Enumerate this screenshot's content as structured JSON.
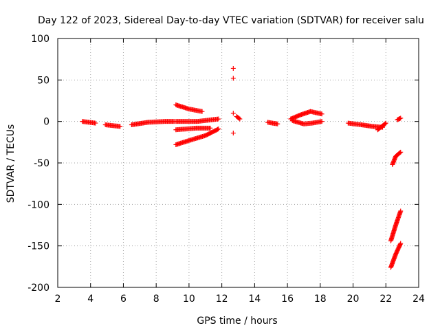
{
  "chart_data": {
    "type": "scatter",
    "title": "Day 122 of 2023, Sidereal Day-to-day VTEC variation (SDTVAR) for receiver salu",
    "xlabel": "GPS time / hours",
    "ylabel": "SDTVAR / TECUs",
    "xlim": [
      2,
      24
    ],
    "ylim": [
      -200,
      100
    ],
    "xticks": [
      2,
      4,
      6,
      8,
      10,
      12,
      14,
      16,
      18,
      20,
      22,
      24
    ],
    "yticks": [
      -200,
      -150,
      -100,
      -50,
      0,
      50,
      100
    ],
    "grid": true,
    "marker": "+",
    "color": "#ff0000",
    "segments": [
      {
        "x": [
          3.5,
          4.3
        ],
        "y": [
          0,
          -2
        ]
      },
      {
        "x": [
          4.9,
          5.8
        ],
        "y": [
          -4,
          -6
        ]
      },
      {
        "x": [
          6.5,
          7.5,
          8.5,
          9.1
        ],
        "y": [
          -4,
          -1,
          0,
          0
        ]
      },
      {
        "x": [
          9.2,
          10.0,
          10.8
        ],
        "y": [
          20,
          15,
          12
        ]
      },
      {
        "x": [
          9.2,
          10.5,
          11.3
        ],
        "y": [
          -10,
          -8,
          -8
        ]
      },
      {
        "x": [
          9.2,
          10.0,
          11.0,
          11.8
        ],
        "y": [
          -28,
          -23,
          -17,
          -9
        ]
      },
      {
        "x": [
          9.2,
          10.5,
          11.8
        ],
        "y": [
          0,
          0,
          3
        ]
      },
      {
        "x": [
          12.7
        ],
        "y": [
          64
        ]
      },
      {
        "x": [
          12.7
        ],
        "y": [
          52
        ]
      },
      {
        "x": [
          12.7
        ],
        "y": [
          10
        ]
      },
      {
        "x": [
          12.7
        ],
        "y": [
          -14
        ]
      },
      {
        "x": [
          12.9,
          13.1
        ],
        "y": [
          6,
          3
        ]
      },
      {
        "x": [
          14.8,
          15.4
        ],
        "y": [
          -1,
          -3
        ]
      },
      {
        "x": [
          16.2,
          16.8,
          17.4,
          18.1
        ],
        "y": [
          3,
          8,
          12,
          9
        ]
      },
      {
        "x": [
          16.3,
          17.0,
          17.5,
          18.1
        ],
        "y": [
          1,
          -3,
          -2,
          0
        ]
      },
      {
        "x": [
          19.7,
          20.5,
          21.2,
          21.8
        ],
        "y": [
          -2,
          -4,
          -6,
          -7
        ]
      },
      {
        "x": [
          21.5,
          22.0
        ],
        "y": [
          -10,
          -2
        ]
      },
      {
        "x": [
          22.7,
          22.9
        ],
        "y": [
          2,
          4
        ]
      },
      {
        "x": [
          22.4,
          22.6,
          22.9
        ],
        "y": [
          -52,
          -42,
          -37
        ]
      },
      {
        "x": [
          22.3,
          22.6,
          22.9
        ],
        "y": [
          -144,
          -125,
          -108
        ]
      },
      {
        "x": [
          22.3,
          22.6,
          22.9
        ],
        "y": [
          -176,
          -160,
          -147
        ]
      }
    ]
  }
}
